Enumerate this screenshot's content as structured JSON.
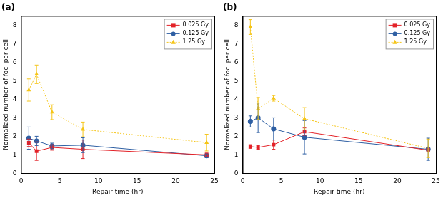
{
  "chart_data": [
    {
      "type": "line",
      "title": "(a)",
      "x_label": "Repair time (hr)",
      "y_label": "Normalized number of foci per cell",
      "x": [
        1,
        2,
        4,
        8,
        24
      ],
      "xlim": [
        0,
        25
      ],
      "xticks": [
        0,
        5,
        10,
        15,
        20,
        25
      ],
      "ylim": [
        0,
        8.5
      ],
      "yticks": [
        0,
        1,
        2,
        3,
        4,
        5,
        6,
        7,
        8
      ],
      "grid": false,
      "legend": "top-right",
      "series": [
        {
          "name": "0.025 Gy",
          "color": "#e32228",
          "marker": "square",
          "line_style": "solid",
          "values": [
            1.65,
            1.2,
            1.4,
            1.3,
            1.0
          ],
          "errors": [
            0.2,
            0.5,
            0.15,
            0.5,
            0.1
          ]
        },
        {
          "name": "0.125 Gy",
          "color": "#2e5fa3",
          "marker": "circle",
          "line_style": "solid",
          "values": [
            1.9,
            1.75,
            1.48,
            1.52,
            0.95
          ],
          "errors": [
            0.6,
            0.25,
            0.15,
            0.4,
            0.1
          ]
        },
        {
          "name": "1.25 Gy",
          "color": "#f5c518",
          "marker": "triangle",
          "line_style": "dotted",
          "values": [
            4.5,
            5.35,
            3.3,
            2.37,
            1.66
          ],
          "errors": [
            0.6,
            0.5,
            0.4,
            0.4,
            0.45
          ]
        }
      ]
    },
    {
      "type": "line",
      "title": "(b)",
      "x_label": "Repair time (hr)",
      "y_label": "Normalized number of foci per cell",
      "x": [
        1,
        2,
        4,
        8,
        24
      ],
      "xlim": [
        0,
        25
      ],
      "xticks": [
        0,
        5,
        10,
        15,
        20,
        25
      ],
      "ylim": [
        0,
        8.5
      ],
      "yticks": [
        0,
        1,
        2,
        3,
        4,
        5,
        6,
        7,
        8
      ],
      "grid": false,
      "legend": "top-right",
      "series": [
        {
          "name": "0.025 Gy",
          "color": "#e32228",
          "marker": "square",
          "line_style": "solid",
          "values": [
            1.45,
            1.4,
            1.55,
            2.25,
            1.25
          ],
          "errors": [
            0.1,
            0.1,
            0.25,
            0.2,
            0.1
          ]
        },
        {
          "name": "0.125 Gy",
          "color": "#2e5fa3",
          "marker": "circle",
          "line_style": "solid",
          "values": [
            2.8,
            3.0,
            2.4,
            1.95,
            1.3
          ],
          "errors": [
            0.3,
            0.8,
            0.6,
            0.9,
            0.6
          ]
        },
        {
          "name": "1.25 Gy",
          "color": "#f5c518",
          "marker": "triangle",
          "line_style": "dotted",
          "values": [
            7.9,
            3.5,
            4.05,
            2.95,
            1.35
          ],
          "errors": [
            0.4,
            0.6,
            0.15,
            0.6,
            0.5
          ]
        }
      ]
    }
  ]
}
